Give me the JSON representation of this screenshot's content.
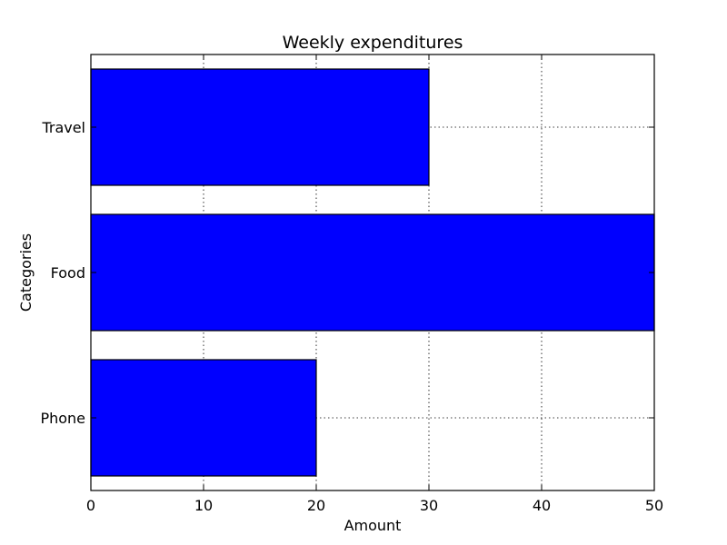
{
  "chart_data": {
    "type": "bar",
    "orientation": "horizontal",
    "title": "Weekly expenditures",
    "xlabel": "Amount",
    "ylabel": "Categories",
    "categories": [
      "Phone",
      "Food",
      "Travel"
    ],
    "values": [
      20,
      50,
      30
    ],
    "xlim": [
      0,
      50
    ],
    "xticks": [
      "0",
      "10",
      "20",
      "30",
      "40",
      "50"
    ],
    "grid": true,
    "colors": {
      "bar_fill": "#0000ff",
      "bar_edge": "#000000",
      "grid": "#000000",
      "frame": "#000000"
    }
  }
}
